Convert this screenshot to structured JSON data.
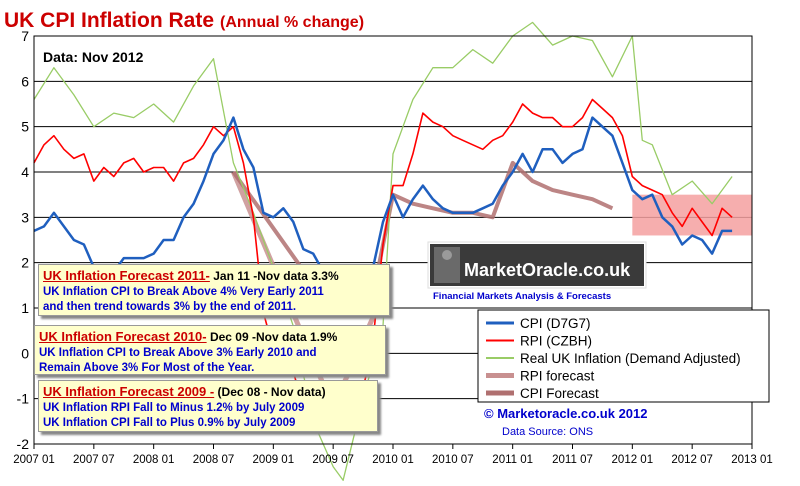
{
  "chart_data": {
    "type": "line",
    "title": "UK CPI Inflation Rate",
    "subtitle": "(Annual % change)",
    "data_label": "Data:  Nov 2012",
    "ylim": [
      -2,
      7
    ],
    "yticks": [
      "7",
      "6",
      "5",
      "4",
      "3",
      "2",
      "1",
      "0",
      "-1",
      "-2"
    ],
    "xticks": [
      "2007 01",
      "2007 07",
      "2008 01",
      "2008 07",
      "2009 01",
      "2009 07",
      "2010 01",
      "2010 07",
      "2011 01",
      "2011 07",
      "2012 01",
      "2012 07",
      "2013 01"
    ],
    "grid": true,
    "legend_position": "bottom-right",
    "series": [
      {
        "name": "CPI (D7G7)",
        "color": "#1f5fbf",
        "x": [
          "2007-01",
          "2007-02",
          "2007-03",
          "2007-04",
          "2007-05",
          "2007-06",
          "2007-07",
          "2007-08",
          "2007-09",
          "2007-10",
          "2007-11",
          "2007-12",
          "2008-01",
          "2008-02",
          "2008-03",
          "2008-04",
          "2008-05",
          "2008-06",
          "2008-07",
          "2008-08",
          "2008-09",
          "2008-10",
          "2008-11",
          "2008-12",
          "2009-01",
          "2009-02",
          "2009-03",
          "2009-04",
          "2009-05",
          "2009-06",
          "2009-07",
          "2009-08",
          "2009-09",
          "2009-10",
          "2009-11",
          "2009-12",
          "2010-01",
          "2010-02",
          "2010-03",
          "2010-04",
          "2010-05",
          "2010-06",
          "2010-07",
          "2010-08",
          "2010-09",
          "2010-10",
          "2010-11",
          "2010-12",
          "2011-01",
          "2011-02",
          "2011-03",
          "2011-04",
          "2011-05",
          "2011-06",
          "2011-07",
          "2011-08",
          "2011-09",
          "2011-10",
          "2011-11",
          "2011-12",
          "2012-01",
          "2012-02",
          "2012-03",
          "2012-04",
          "2012-05",
          "2012-06",
          "2012-07",
          "2012-08",
          "2012-09",
          "2012-10",
          "2012-11"
        ],
        "values": [
          2.7,
          2.8,
          3.1,
          2.8,
          2.5,
          2.4,
          1.9,
          1.8,
          1.8,
          2.1,
          2.1,
          2.1,
          2.2,
          2.5,
          2.5,
          3.0,
          3.3,
          3.8,
          4.4,
          4.7,
          5.2,
          4.5,
          4.1,
          3.1,
          3.0,
          3.2,
          2.9,
          2.3,
          2.2,
          1.8,
          1.8,
          1.6,
          1.1,
          1.5,
          1.9,
          2.9,
          3.5,
          3.0,
          3.4,
          3.7,
          3.4,
          3.2,
          3.1,
          3.1,
          3.1,
          3.2,
          3.3,
          3.7,
          4.0,
          4.4,
          4.0,
          4.5,
          4.5,
          4.2,
          4.4,
          4.5,
          5.2,
          5.0,
          4.8,
          4.2,
          3.6,
          3.4,
          3.5,
          3.0,
          2.8,
          2.4,
          2.6,
          2.5,
          2.2,
          2.7,
          2.7
        ]
      },
      {
        "name": "RPI (CZBH)",
        "color": "#ff0000",
        "x": [
          "2007-01",
          "2007-02",
          "2007-03",
          "2007-04",
          "2007-05",
          "2007-06",
          "2007-07",
          "2007-08",
          "2007-09",
          "2007-10",
          "2007-11",
          "2007-12",
          "2008-01",
          "2008-02",
          "2008-03",
          "2008-04",
          "2008-05",
          "2008-06",
          "2008-07",
          "2008-08",
          "2008-09",
          "2008-10",
          "2008-11",
          "2008-12",
          "2009-01",
          "2009-02",
          "2009-03",
          "2009-04",
          "2009-05",
          "2009-06",
          "2009-07",
          "2009-08",
          "2009-09",
          "2009-10",
          "2009-11",
          "2009-12",
          "2010-01",
          "2010-02",
          "2010-03",
          "2010-04",
          "2010-05",
          "2010-06",
          "2010-07",
          "2010-08",
          "2010-09",
          "2010-10",
          "2010-11",
          "2010-12",
          "2011-01",
          "2011-02",
          "2011-03",
          "2011-04",
          "2011-05",
          "2011-06",
          "2011-07",
          "2011-08",
          "2011-09",
          "2011-10",
          "2011-11",
          "2011-12",
          "2012-01",
          "2012-02",
          "2012-03",
          "2012-04",
          "2012-05",
          "2012-06",
          "2012-07",
          "2012-08",
          "2012-09",
          "2012-10",
          "2012-11"
        ],
        "values": [
          4.2,
          4.6,
          4.8,
          4.5,
          4.3,
          4.4,
          3.8,
          4.1,
          3.9,
          4.2,
          4.3,
          4.0,
          4.1,
          4.1,
          3.8,
          4.2,
          4.3,
          4.6,
          5.0,
          4.8,
          5.0,
          4.2,
          3.0,
          0.9,
          0.1,
          0.0,
          -0.4,
          -1.2,
          -1.1,
          -1.6,
          -1.4,
          -1.3,
          -1.4,
          -0.8,
          0.3,
          2.4,
          3.7,
          3.7,
          4.4,
          5.3,
          5.1,
          5.0,
          4.8,
          4.7,
          4.6,
          4.5,
          4.7,
          4.8,
          5.1,
          5.5,
          5.3,
          5.2,
          5.2,
          5.0,
          5.0,
          5.2,
          5.6,
          5.4,
          5.2,
          4.8,
          3.9,
          3.7,
          3.6,
          3.5,
          3.1,
          2.8,
          3.2,
          2.9,
          2.6,
          3.2,
          3.0
        ]
      },
      {
        "name": "Real UK Inflation (Demand Adjusted)",
        "color": "#99cc66",
        "x": [
          "2007-01",
          "2007-03",
          "2007-05",
          "2007-07",
          "2007-09",
          "2007-11",
          "2008-01",
          "2008-03",
          "2008-05",
          "2008-07",
          "2008-09",
          "2008-11",
          "2009-01",
          "2009-03",
          "2009-05",
          "2009-07",
          "2009-08",
          "2009-10",
          "2009-12",
          "2010-01",
          "2010-03",
          "2010-05",
          "2010-07",
          "2010-09",
          "2010-11",
          "2011-01",
          "2011-03",
          "2011-05",
          "2011-07",
          "2011-09",
          "2011-11",
          "2012-01",
          "2012-02",
          "2012-03",
          "2012-05",
          "2012-07",
          "2012-09",
          "2012-11"
        ],
        "values": [
          5.6,
          6.3,
          5.7,
          5.0,
          5.3,
          5.2,
          5.5,
          5.1,
          5.9,
          6.5,
          4.2,
          3.1,
          1.9,
          0.6,
          -1.5,
          -2.5,
          -2.8,
          -1.0,
          0.6,
          4.4,
          5.6,
          6.3,
          6.3,
          6.7,
          6.4,
          7.0,
          7.3,
          6.8,
          7.0,
          6.9,
          6.1,
          7.0,
          4.7,
          4.6,
          3.5,
          3.8,
          3.3,
          3.9
        ]
      },
      {
        "name": "RPI forecast",
        "color": "#c89090",
        "x": [
          "2008-09",
          "2009-07",
          "2009-11"
        ],
        "values": [
          4.0,
          -1.2,
          0.8
        ]
      },
      {
        "name": "CPI Forecast",
        "color": "#b07070",
        "x": [
          "2008-09",
          "2009-07",
          "2009-11",
          "2010-01",
          "2010-03",
          "2010-05",
          "2010-07",
          "2010-09",
          "2010-11",
          "2011-01",
          "2011-03",
          "2011-05",
          "2011-07",
          "2011-09",
          "2011-11"
        ],
        "values": [
          4.0,
          0.9,
          1.3,
          3.5,
          3.3,
          3.2,
          3.1,
          3.1,
          3.0,
          4.2,
          3.8,
          3.6,
          3.5,
          3.4,
          3.2
        ]
      }
    ]
  },
  "annotations": [
    {
      "title": "UK Inflation  Forecast 2011-",
      "title_detail": " Jan 11 -Nov data 3.3%",
      "lines": [
        "UK Inflation CPI to Break Above 4% Very Early 2011",
        "and then trend towards 3% by the end of 2011."
      ]
    },
    {
      "title": "UK Inflation  Forecast 2010-",
      "title_detail": " Dec 09 -Nov data 1.9%",
      "lines": [
        "UK Inflation CPI to Break Above 3% Early 2010 and",
        "Remain Above 3% For Most of the Year."
      ]
    },
    {
      "title": "UK Inflation  Forecast 2009 -",
      "title_detail": " (Dec 08 - Nov data)",
      "lines": [
        "UK Inflation RPI Fall to  Minus 1.2% by July 2009",
        "UK Inflation CPI Fall to Plus 0.9% by July 2009"
      ]
    }
  ],
  "logo": {
    "name": "MarketOracle.co.uk",
    "tagline": "Financial Markets Analysis & Forecasts"
  },
  "copyright": "© Marketoracle.co.uk  2012",
  "source": "Data Source: ONS",
  "highlight": {
    "x_start": "2012-01",
    "x_end": "2013-01",
    "y_low": 2.6,
    "y_high": 3.5,
    "color": "#f4a0a0"
  }
}
